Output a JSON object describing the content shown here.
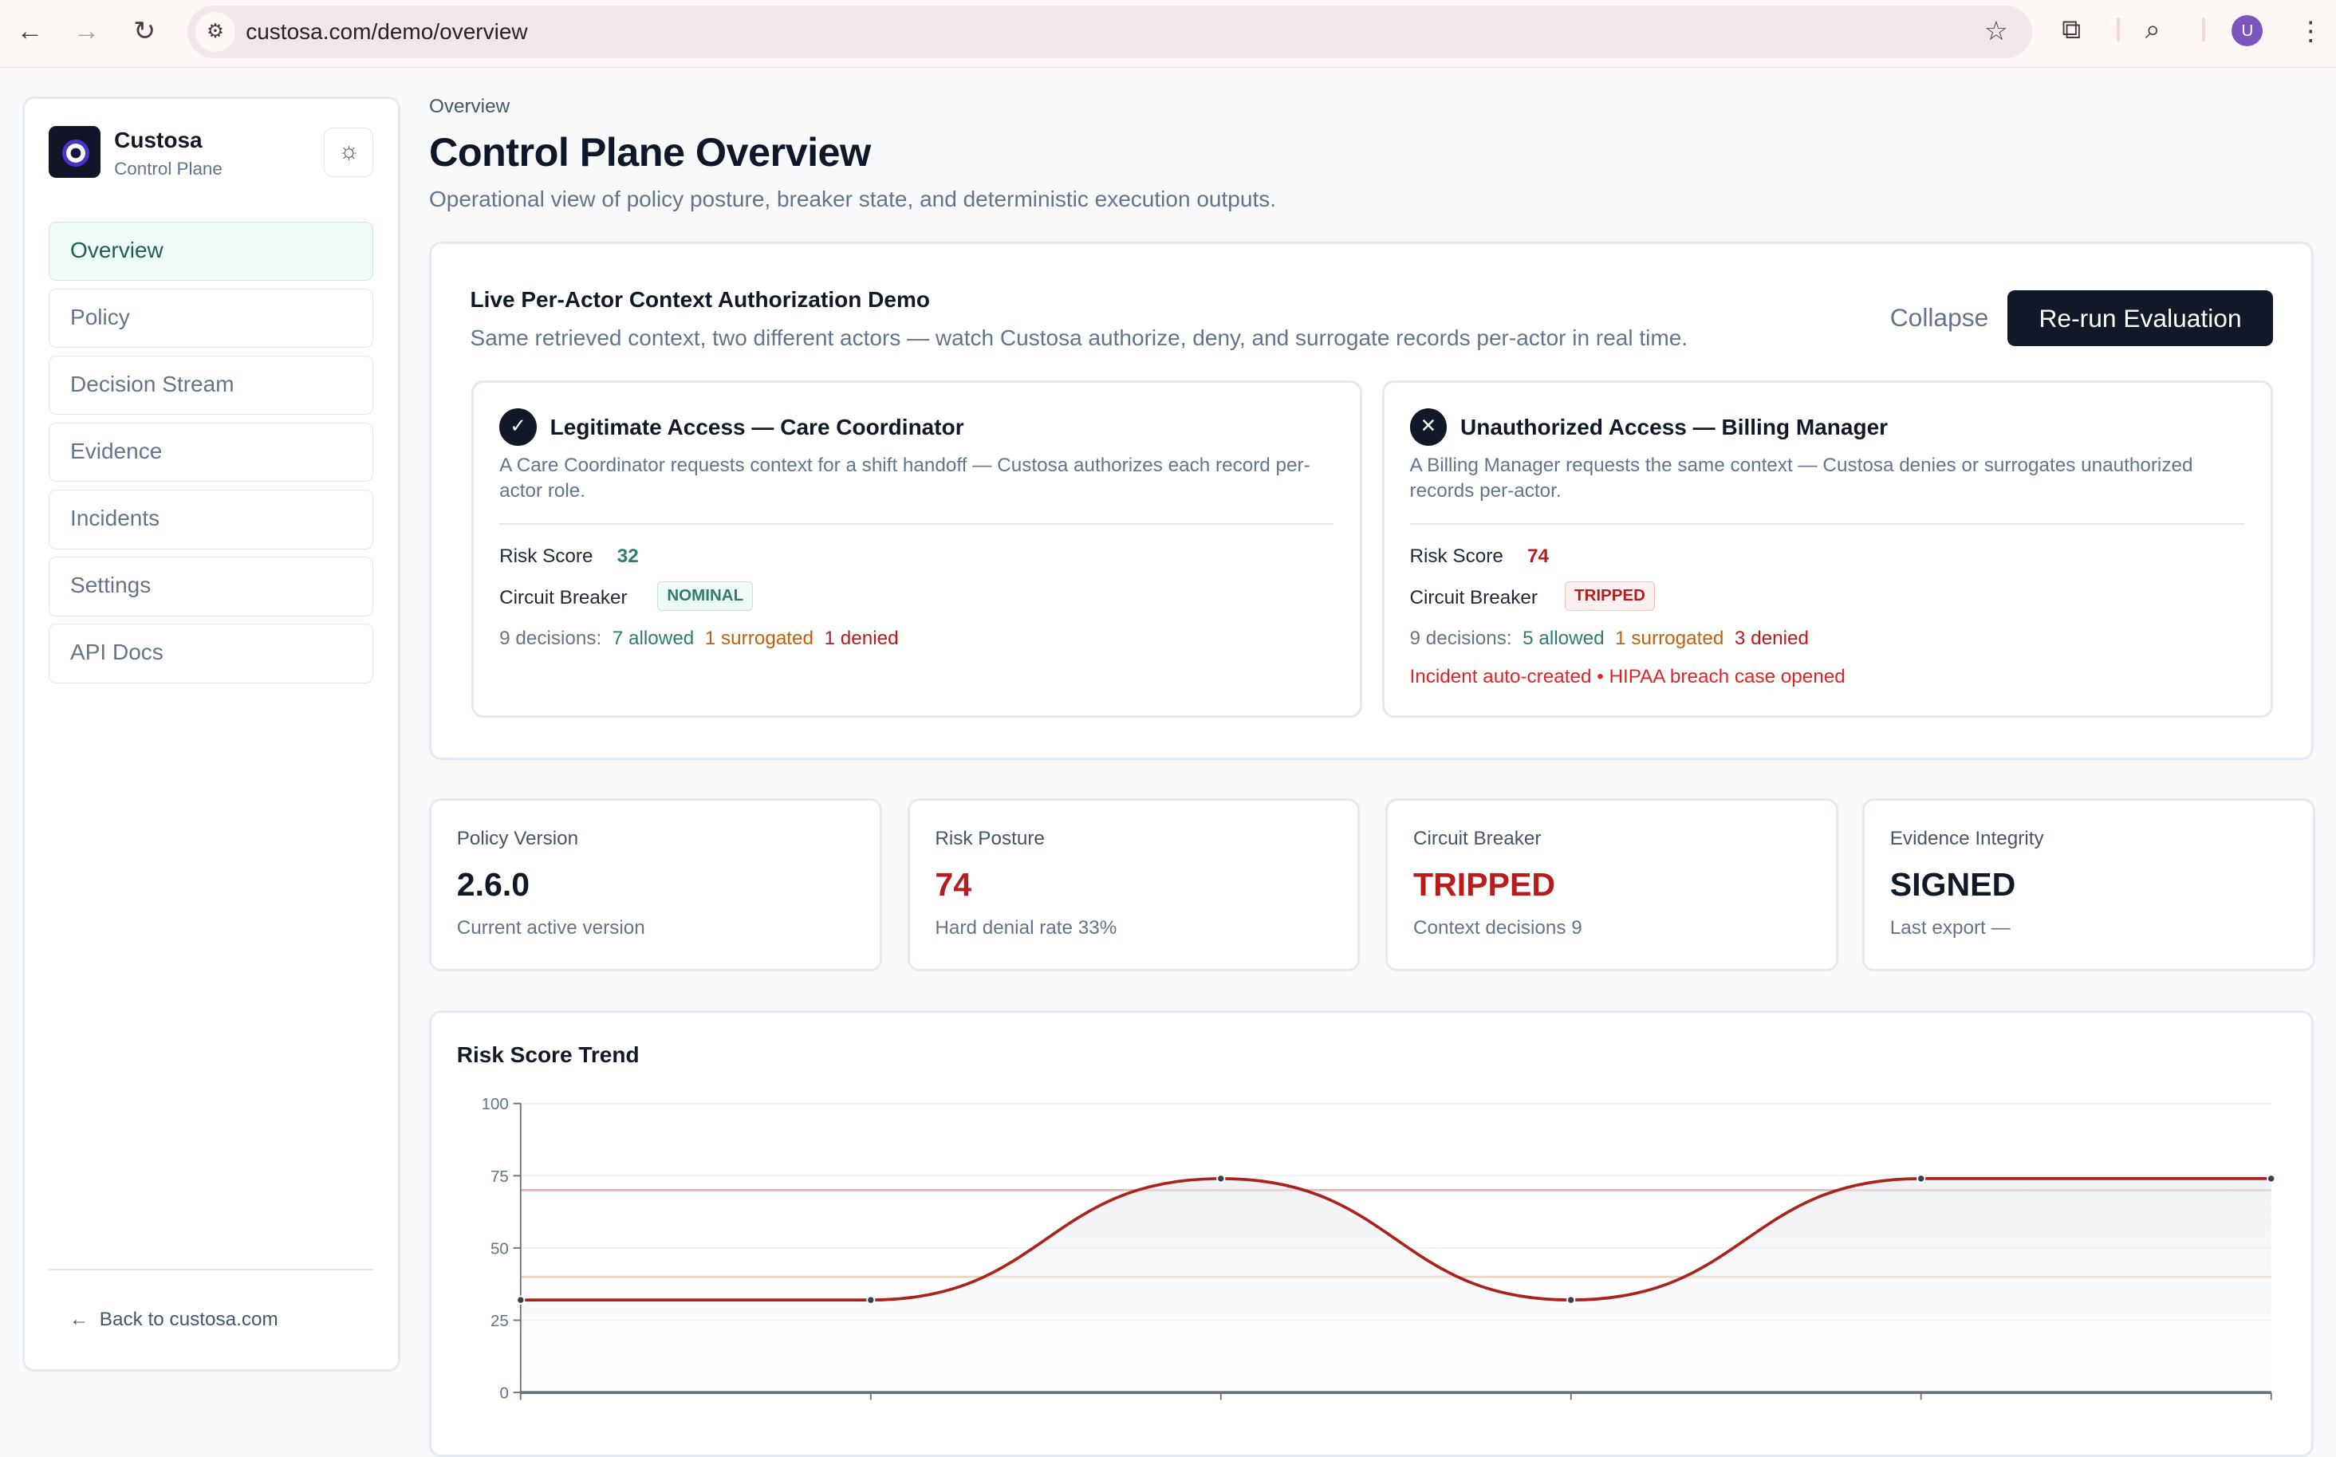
{
  "browser": {
    "url": "custosa.com/demo/overview",
    "avatar_letter": "U",
    "icons": [
      "back-icon",
      "forward-icon",
      "reload-icon",
      "site-settings-icon",
      "star-icon",
      "extensions-icon",
      "tab-search-icon",
      "menu-icon"
    ]
  },
  "sidebar": {
    "brand": "Custosa",
    "brand_sub": "Control Plane",
    "items": [
      {
        "label": "Overview",
        "active": true
      },
      {
        "label": "Policy"
      },
      {
        "label": "Decision Stream"
      },
      {
        "label": "Evidence"
      },
      {
        "label": "Incidents"
      },
      {
        "label": "Settings"
      },
      {
        "label": "API Docs"
      }
    ],
    "back_link": "Back to custosa.com"
  },
  "header": {
    "breadcrumb": "Overview",
    "title": "Control Plane Overview",
    "subtitle": "Operational view of policy posture, breaker state, and deterministic execution outputs."
  },
  "demo": {
    "title": "Live Per-Actor Context Authorization Demo",
    "subtitle": "Same retrieved context, two different actors — watch Custosa authorize, deny, and surrogate records per-actor in real time.",
    "collapse_label": "Collapse",
    "rerun_label": "Re-run Evaluation",
    "actors": [
      {
        "title": "Legitimate Access — Care Coordinator",
        "icon": "check-icon",
        "description": "A Care Coordinator requests context for a shift handoff — Custosa authorizes each record per-actor role.",
        "risk_label": "Risk Score",
        "risk_score": "32",
        "breaker_label": "Circuit Breaker",
        "breaker_state": "NOMINAL",
        "decisions_label": "9 decisions:",
        "allowed": "7 allowed",
        "surrogated": "1 surrogated",
        "denied": "1 denied"
      },
      {
        "title": "Unauthorized Access — Billing Manager",
        "icon": "x-icon",
        "description": "A Billing Manager requests the same context — Custosa denies or surrogates unauthorized records per-actor.",
        "risk_label": "Risk Score",
        "risk_score": "74",
        "breaker_label": "Circuit Breaker",
        "breaker_state": "TRIPPED",
        "decisions_label": "9 decisions:",
        "allowed": "5 allowed",
        "surrogated": "1 surrogated",
        "denied": "3 denied",
        "incident": "Incident auto-created • HIPAA breach case opened"
      }
    ]
  },
  "stats": [
    {
      "label": "Policy Version",
      "value": "2.6.0",
      "sub": "Current active version"
    },
    {
      "label": "Risk Posture",
      "value": "74",
      "sub": "Hard denial rate 33%"
    },
    {
      "label": "Circuit Breaker",
      "value": "TRIPPED",
      "sub": "Context decisions 9"
    },
    {
      "label": "Evidence Integrity",
      "value": "SIGNED",
      "sub": "Last export —"
    }
  ],
  "colors": {
    "allowed": "#2f7d6b",
    "surrogated": "#c2610c",
    "denied": "#b91c1c",
    "danger": "#dc2626",
    "dark": "#111827",
    "line": "#a8241c"
  },
  "chart_data": {
    "type": "line",
    "title": "Risk Score Trend",
    "y_ticks": [
      "100",
      "75",
      "50",
      "25",
      "0"
    ],
    "ylim": [
      0,
      100
    ],
    "values": [
      32,
      32,
      74,
      32,
      74,
      74
    ],
    "thresholds": [
      {
        "value": 70,
        "color": "#e8b4b4"
      },
      {
        "value": 40,
        "color": "#ecd3bf"
      }
    ],
    "grid": true,
    "area_fill": true
  }
}
